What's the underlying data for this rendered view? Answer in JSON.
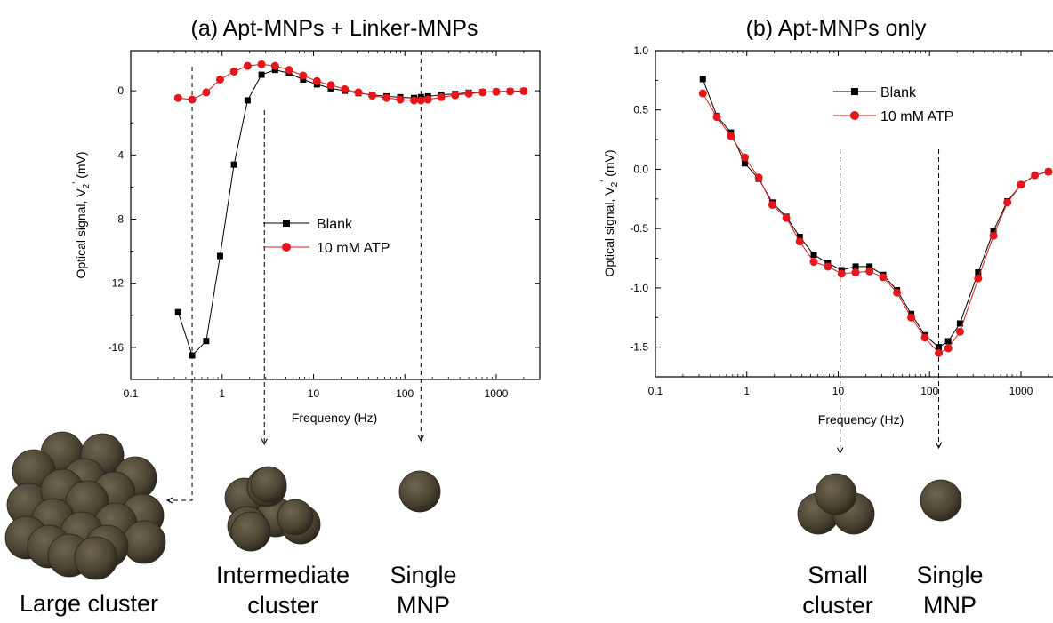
{
  "colors": {
    "blank": "#000000",
    "atp": "#e8161b",
    "particle": "#4a4332",
    "particle_hi": "#6e6650"
  },
  "chart_data": [
    {
      "type": "line",
      "title": "(a) Apt-MNPs + Linker-MNPs",
      "xlabel": "Frequency (Hz)",
      "ylabel_main": "Optical signal, V",
      "ylabel_sub": "2",
      "ylabel_prime": "'",
      "ylabel_unit": "(mV)",
      "xscale": "log",
      "xlim": [
        0.1,
        3000
      ],
      "ylim": [
        -18,
        2.5
      ],
      "xticks": [
        {
          "v": 0.1,
          "label": "0.1"
        },
        {
          "v": 1,
          "label": "1"
        },
        {
          "v": 10,
          "label": "10"
        },
        {
          "v": 100,
          "label": "100"
        },
        {
          "v": 1000,
          "label": "1000"
        }
      ],
      "yticks": [
        {
          "v": 0,
          "label": "0"
        },
        {
          "v": -4,
          "label": "-4"
        },
        {
          "v": -8,
          "label": "-8"
        },
        {
          "v": -12,
          "label": "-12"
        },
        {
          "v": -16,
          "label": "-16"
        }
      ],
      "legend_position": "center",
      "series": [
        {
          "name": "Blank",
          "color": "#000000",
          "marker": "square",
          "x": [
            0.33,
            0.47,
            0.67,
            0.95,
            1.35,
            1.9,
            2.7,
            3.8,
            5.4,
            7.7,
            10.9,
            15.5,
            22,
            31,
            44,
            63,
            89,
            126,
            150,
            179,
            250,
            355,
            500,
            710,
            1000,
            1420,
            2000
          ],
          "y": [
            -13.8,
            -16.5,
            -15.6,
            -10.3,
            -4.6,
            -0.6,
            1.0,
            1.3,
            1.1,
            0.7,
            0.4,
            0.15,
            0.0,
            -0.15,
            -0.25,
            -0.35,
            -0.4,
            -0.45,
            -0.4,
            -0.35,
            -0.25,
            -0.2,
            -0.12,
            -0.08,
            -0.05,
            -0.03,
            -0.02
          ]
        },
        {
          "name": "10 mM ATP",
          "color": "#e8161b",
          "marker": "circle",
          "x": [
            0.33,
            0.47,
            0.67,
            0.95,
            1.35,
            1.9,
            2.7,
            3.8,
            5.4,
            7.7,
            10.9,
            15.5,
            22,
            31,
            44,
            63,
            89,
            126,
            150,
            179,
            250,
            355,
            500,
            710,
            1000,
            1420,
            2000
          ],
          "y": [
            -0.45,
            -0.55,
            -0.1,
            0.7,
            1.2,
            1.55,
            1.65,
            1.55,
            1.3,
            0.95,
            0.6,
            0.35,
            0.1,
            -0.1,
            -0.3,
            -0.45,
            -0.55,
            -0.6,
            -0.6,
            -0.55,
            -0.4,
            -0.28,
            -0.18,
            -0.1,
            -0.06,
            -0.04,
            -0.02
          ]
        }
      ]
    },
    {
      "type": "line",
      "title": "(b) Apt-MNPs only",
      "xlabel": "Frequency (Hz)",
      "ylabel_main": "Optical signal, V",
      "ylabel_sub": "2",
      "ylabel_prime": "'",
      "ylabel_unit": "(mV)",
      "xscale": "log",
      "xlim": [
        0.1,
        3000
      ],
      "ylim": [
        -1.75,
        1.0
      ],
      "xticks": [
        {
          "v": 0.1,
          "label": "0.1"
        },
        {
          "v": 1,
          "label": "1"
        },
        {
          "v": 10,
          "label": "10"
        },
        {
          "v": 100,
          "label": "100"
        },
        {
          "v": 1000,
          "label": "1000"
        }
      ],
      "yticks": [
        {
          "v": 1.0,
          "label": "1.0"
        },
        {
          "v": 0.5,
          "label": "0.5"
        },
        {
          "v": 0.0,
          "label": "0.0"
        },
        {
          "v": -0.5,
          "label": "-0.5"
        },
        {
          "v": -1.0,
          "label": "-1.0"
        },
        {
          "v": -1.5,
          "label": "-1.5"
        }
      ],
      "legend_position": "top-center",
      "series": [
        {
          "name": "Blank",
          "color": "#000000",
          "marker": "square",
          "x": [
            0.33,
            0.47,
            0.67,
            0.95,
            1.35,
            1.9,
            2.7,
            3.8,
            5.4,
            7.7,
            10.9,
            15.5,
            22,
            31,
            44,
            63,
            89,
            126,
            160,
            215,
            340,
            500,
            710,
            1000,
            1420,
            2000
          ],
          "y": [
            0.76,
            0.45,
            0.31,
            0.05,
            -0.08,
            -0.28,
            -0.4,
            -0.57,
            -0.72,
            -0.79,
            -0.85,
            -0.82,
            -0.82,
            -0.89,
            -1.02,
            -1.22,
            -1.4,
            -1.5,
            -1.45,
            -1.3,
            -0.87,
            -0.52,
            -0.27,
            -0.13,
            -0.05,
            -0.02
          ]
        },
        {
          "name": "10 mM ATP",
          "color": "#e8161b",
          "marker": "circle",
          "x": [
            0.33,
            0.47,
            0.67,
            0.95,
            1.35,
            1.9,
            2.7,
            3.8,
            5.4,
            7.7,
            10.9,
            15.5,
            22,
            31,
            44,
            63,
            89,
            126,
            160,
            215,
            340,
            500,
            710,
            1000,
            1420,
            2000
          ],
          "y": [
            0.64,
            0.44,
            0.28,
            0.1,
            -0.07,
            -0.3,
            -0.41,
            -0.61,
            -0.78,
            -0.82,
            -0.88,
            -0.87,
            -0.86,
            -0.91,
            -1.04,
            -1.25,
            -1.42,
            -1.55,
            -1.51,
            -1.37,
            -0.92,
            -0.56,
            -0.28,
            -0.13,
            -0.05,
            -0.02
          ]
        }
      ]
    }
  ],
  "captions": {
    "large_cluster": "Large cluster",
    "intermediate_line1": "Intermediate",
    "intermediate_line2": "cluster",
    "single_a_line1": "Single",
    "single_a_line2": "MNP",
    "small_line1": "Small",
    "small_line2": "cluster",
    "single_b_line1": "Single",
    "single_b_line2": "MNP"
  },
  "markers": {
    "a": [
      {
        "x": 0.47,
        "target": "large"
      },
      {
        "x": 2.9,
        "target": "intermediate"
      },
      {
        "x": 150,
        "target": "single"
      }
    ],
    "b": [
      {
        "x": 10.5,
        "target": "small"
      },
      {
        "x": 126,
        "target": "single"
      }
    ]
  }
}
